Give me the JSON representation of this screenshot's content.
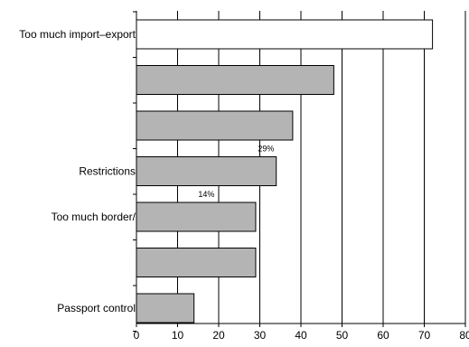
{
  "chart_data": {
    "type": "bar",
    "orientation": "horizontal",
    "categories": [
      "Too much import–export",
      "",
      "",
      "Restrictions",
      "Too much border/",
      "",
      "Passport control"
    ],
    "values": [
      72,
      48,
      38,
      34,
      29,
      29,
      14
    ],
    "bar_colors": [
      "#ffffff",
      "#b4b4b4",
      "#b4b4b4",
      "#b4b4b4",
      "#b4b4b4",
      "#b4b4b4",
      "#b4b4b4"
    ],
    "annotations": [
      {
        "text": "29%",
        "x": 31.5,
        "y": 34
      },
      {
        "text": "14%",
        "x": 17,
        "y": 29
      }
    ],
    "xlim": [
      0,
      80
    ],
    "xticks": [
      0,
      10,
      20,
      30,
      40,
      50,
      60,
      70,
      80
    ],
    "grid": true,
    "title": "",
    "xlabel": "",
    "ylabel": ""
  }
}
